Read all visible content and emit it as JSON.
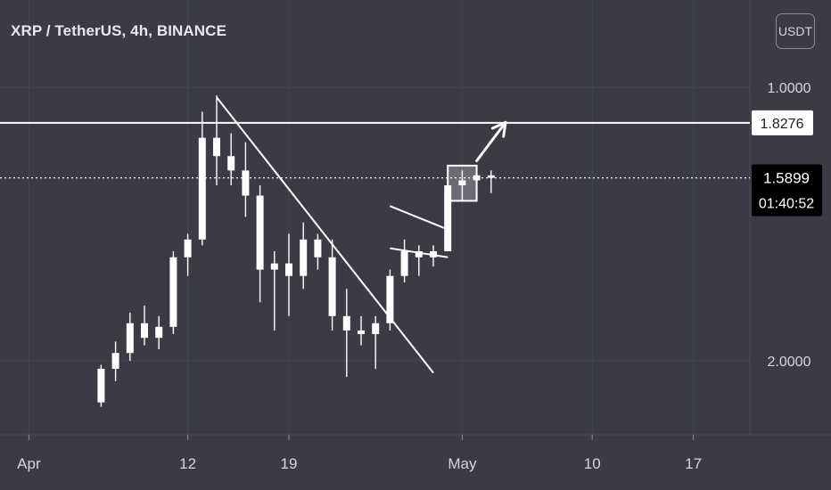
{
  "header": {
    "symbol_title": "XRP / TetherUS, 4h, BINANCE",
    "currency": "USDT"
  },
  "price_axis": {
    "labels": [
      "2.0000",
      "1.0000"
    ]
  },
  "markers": {
    "resistance": "1.8276",
    "last_price": "1.5899",
    "countdown": "01:40:52"
  },
  "time_axis": {
    "labels": [
      "Apr",
      "12",
      "19",
      "May",
      "10",
      "17"
    ]
  },
  "colors": {
    "background": "#3a3b45",
    "candle": "#ffffff",
    "drawing": "#ffffff",
    "grid": "#44454f",
    "axis_text": "#d6d6dc",
    "price_tag_bg": "#000000"
  },
  "chart_data": {
    "type": "candlestick",
    "title": "XRP / TetherUS, 4h, BINANCE",
    "xlabel": "",
    "ylabel": "",
    "y_scale": "log",
    "ylim": [
      0.85,
      2.6
    ],
    "x_range": [
      "2021-03-30",
      "2021-05-23"
    ],
    "x_ticks": [
      "Apr",
      "12",
      "19",
      "May",
      "10",
      "17"
    ],
    "y_ticks": [
      1.0,
      2.0
    ],
    "horizontal_levels": [
      {
        "label": "1.8276",
        "value": 1.8276,
        "style": "solid"
      },
      {
        "label": "1.5899",
        "value": 1.5899,
        "style": "dotted"
      }
    ],
    "drawings": [
      {
        "kind": "trendline",
        "from": [
          "2021-04-14",
          1.95
        ],
        "to": [
          "2021-04-29",
          0.97
        ]
      },
      {
        "kind": "triangle",
        "from": [
          "2021-04-26",
          1.33
        ],
        "to": [
          "2021-04-30",
          1.37
        ]
      },
      {
        "kind": "rectangle",
        "from": [
          "2021-04-30",
          1.64
        ],
        "to": [
          "2021-05-02",
          1.5
        ]
      },
      {
        "kind": "arrow",
        "from": [
          "2021-05-02",
          1.66
        ],
        "to": [
          "2021-05-04",
          1.83
        ]
      }
    ],
    "ohlc_columns": [
      "date",
      "open",
      "high",
      "low",
      "close"
    ],
    "ohlc": [
      [
        "2021-04-06",
        0.9,
        0.99,
        0.89,
        0.98
      ],
      [
        "2021-04-07",
        0.98,
        1.05,
        0.95,
        1.02
      ],
      [
        "2021-04-08",
        1.02,
        1.13,
        1.0,
        1.1
      ],
      [
        "2021-04-09",
        1.1,
        1.15,
        1.04,
        1.06
      ],
      [
        "2021-04-10",
        1.06,
        1.12,
        1.03,
        1.09
      ],
      [
        "2021-04-11",
        1.09,
        1.32,
        1.07,
        1.3
      ],
      [
        "2021-04-12",
        1.3,
        1.38,
        1.24,
        1.36
      ],
      [
        "2021-04-13",
        1.36,
        1.88,
        1.34,
        1.76
      ],
      [
        "2021-04-14",
        1.76,
        1.96,
        1.56,
        1.68
      ],
      [
        "2021-04-15",
        1.68,
        1.78,
        1.56,
        1.62
      ],
      [
        "2021-04-16",
        1.62,
        1.74,
        1.44,
        1.52
      ],
      [
        "2021-04-17",
        1.52,
        1.56,
        1.16,
        1.26
      ],
      [
        "2021-04-18",
        1.26,
        1.32,
        1.08,
        1.28
      ],
      [
        "2021-04-19",
        1.28,
        1.38,
        1.12,
        1.24
      ],
      [
        "2021-04-20",
        1.24,
        1.42,
        1.2,
        1.36
      ],
      [
        "2021-04-21",
        1.36,
        1.38,
        1.26,
        1.3
      ],
      [
        "2021-04-22",
        1.3,
        1.36,
        1.08,
        1.12
      ],
      [
        "2021-04-23",
        1.12,
        1.2,
        0.96,
        1.08
      ],
      [
        "2021-04-24",
        1.08,
        1.12,
        1.04,
        1.07
      ],
      [
        "2021-04-25",
        1.07,
        1.12,
        0.98,
        1.1
      ],
      [
        "2021-04-26",
        1.1,
        1.26,
        1.08,
        1.24
      ],
      [
        "2021-04-27",
        1.24,
        1.36,
        1.22,
        1.32
      ],
      [
        "2021-04-28",
        1.32,
        1.34,
        1.24,
        1.3
      ],
      [
        "2021-04-29",
        1.3,
        1.34,
        1.27,
        1.32
      ],
      [
        "2021-04-30",
        1.32,
        1.6,
        1.32,
        1.56
      ],
      [
        "2021-05-01",
        1.56,
        1.62,
        1.5,
        1.58
      ],
      [
        "2021-05-02",
        1.58,
        1.64,
        1.52,
        1.6
      ],
      [
        "2021-05-03",
        1.6,
        1.62,
        1.53,
        1.59
      ]
    ]
  }
}
